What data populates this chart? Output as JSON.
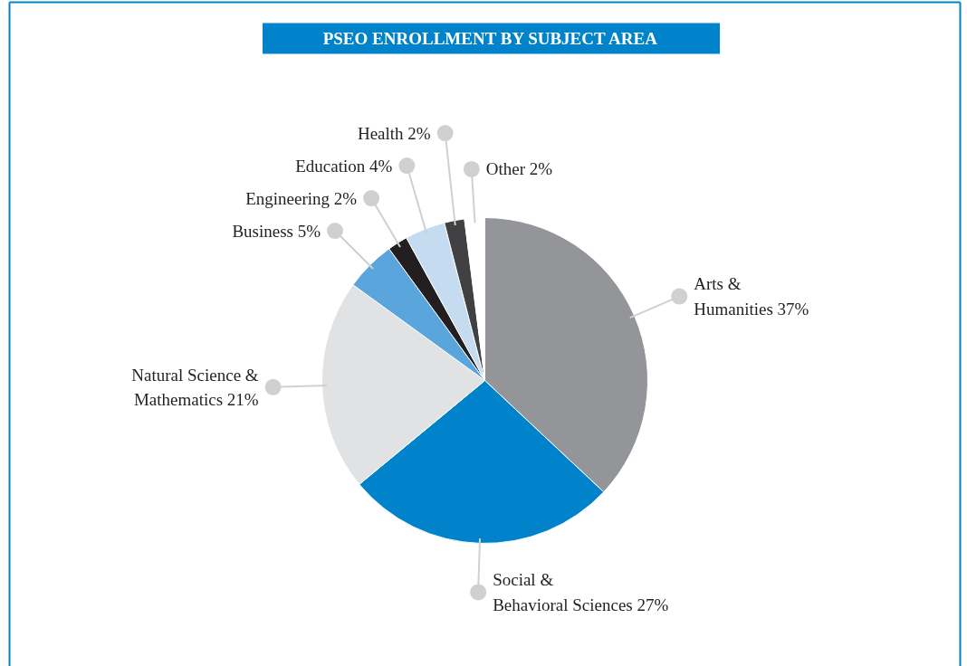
{
  "chart_data": {
    "type": "pie",
    "title": "PSEO ENROLLMENT BY SUBJECT AREA",
    "categories": [
      "Arts & Humanities",
      "Social & Behavioral Sciences",
      "Natural Science & Mathematics",
      "Business",
      "Engineering",
      "Education",
      "Health",
      "Other"
    ],
    "values": [
      37,
      27,
      21,
      5,
      2,
      4,
      2,
      2
    ],
    "colors": [
      "#939598",
      "#0083ca",
      "#e1e2e3",
      "#5aa6dc",
      "#231f20",
      "#c5dcf0",
      "#414042",
      "#ffffff"
    ],
    "value_labels": [
      "37%",
      "27%",
      "21%",
      "5%",
      "2%",
      "4%",
      "2%",
      "2%"
    ]
  }
}
